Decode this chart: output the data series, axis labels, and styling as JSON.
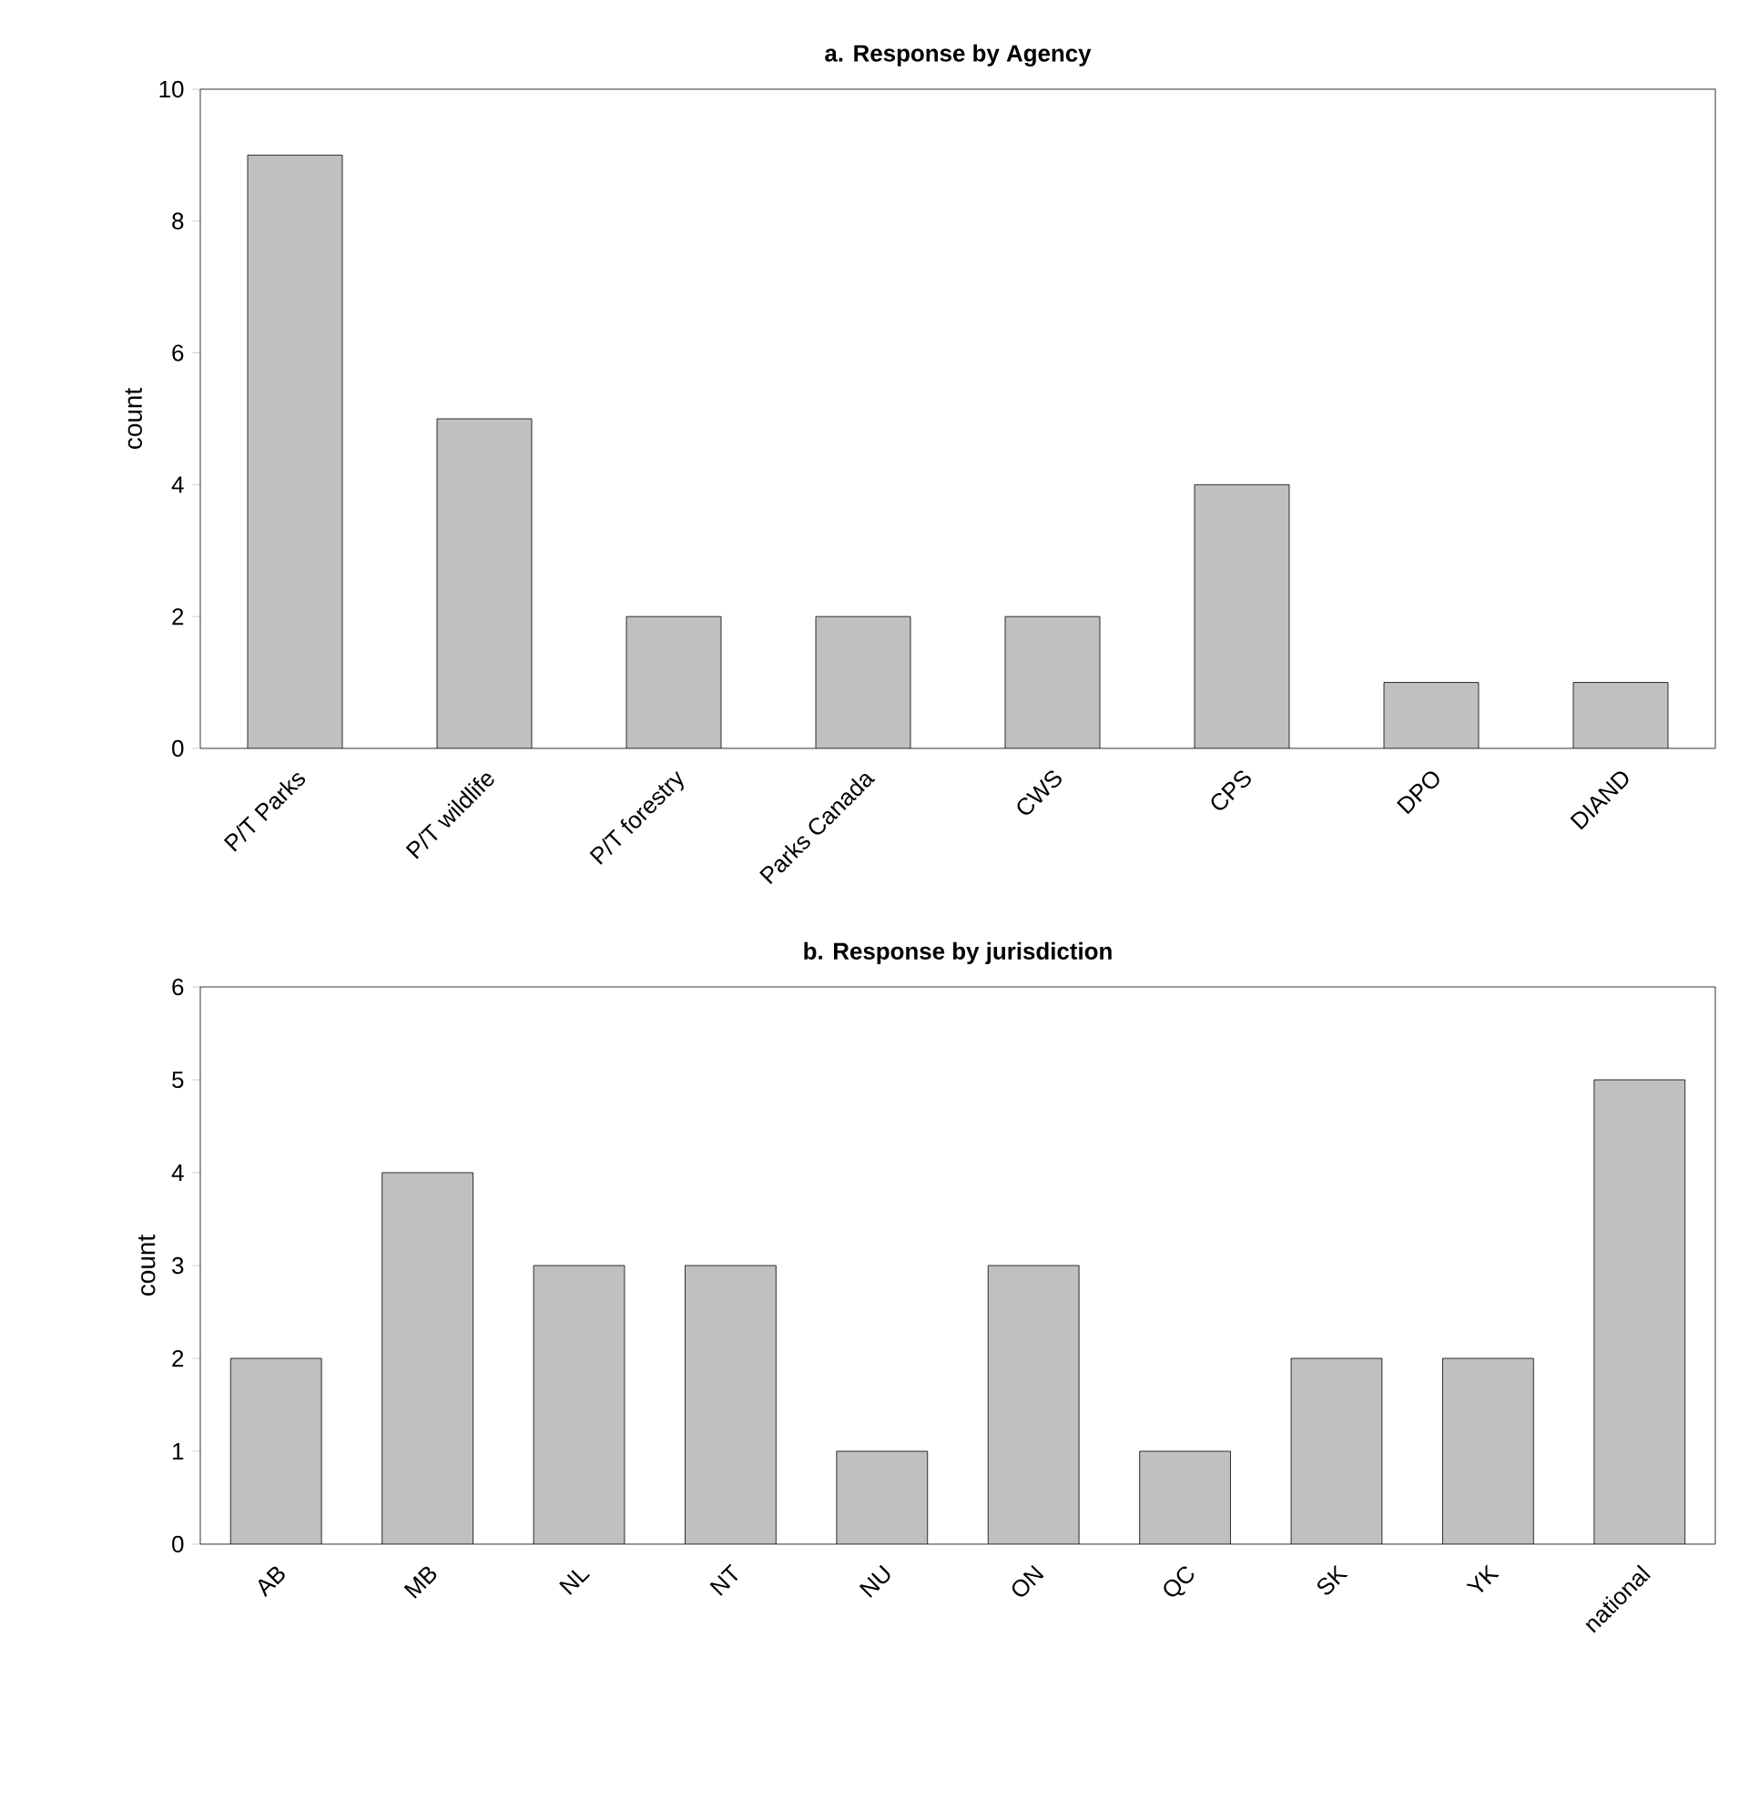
{
  "chart_data": [
    {
      "type": "bar",
      "title": "a. Response by Agency",
      "ylabel": "count",
      "categories": [
        "P/T Parks",
        "P/T wildlife",
        "P/T forestry",
        "Parks Canada",
        "CWS",
        "CPS",
        "DPO",
        "DIAND"
      ],
      "values": [
        9,
        5,
        2,
        2,
        2,
        4,
        1,
        1
      ],
      "color": "#c0c0c0",
      "ylim": [
        0,
        10
      ],
      "yticks": [
        0,
        2,
        4,
        6,
        8,
        10
      ]
    },
    {
      "type": "bar",
      "title": "b. Response by jurisdiction",
      "ylabel": "count",
      "categories": [
        "AB",
        "MB",
        "NL",
        "NT",
        "NU",
        "ON",
        "QC",
        "SK",
        "YK",
        "national"
      ],
      "values": [
        2,
        4,
        3,
        3,
        1,
        3,
        1,
        2,
        2,
        5
      ],
      "color": "#c0c0c0",
      "ylim": [
        0,
        6
      ],
      "yticks": [
        0,
        1,
        2,
        3,
        4,
        5,
        6
      ]
    }
  ]
}
